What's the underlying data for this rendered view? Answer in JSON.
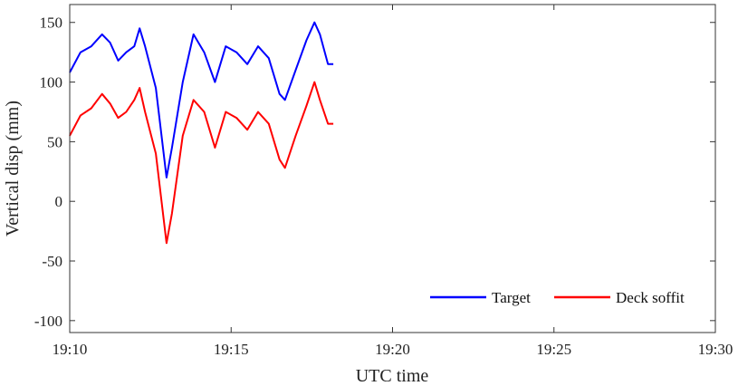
{
  "chart_data": {
    "type": "line",
    "title": "",
    "xlabel": "UTC time",
    "ylabel": "Vertical disp (mm)",
    "xlim": [
      "19:10",
      "19:30"
    ],
    "ylim": [
      -110,
      165
    ],
    "x_ticks": [
      "19:10",
      "19:15",
      "19:20",
      "19:25",
      "19:30"
    ],
    "y_ticks": [
      150,
      100,
      50,
      0,
      -50,
      -100
    ],
    "grid": false,
    "legend_position": "bottom-right",
    "series": [
      {
        "name": "Target",
        "color": "#0000ff",
        "points": [
          [
            "19:10:00",
            108
          ],
          [
            "19:10:20",
            125
          ],
          [
            "19:10:40",
            130
          ],
          [
            "19:11:00",
            140
          ],
          [
            "19:11:15",
            133
          ],
          [
            "19:11:30",
            118
          ],
          [
            "19:11:45",
            125
          ],
          [
            "19:12:00",
            130
          ],
          [
            "19:12:10",
            145
          ],
          [
            "19:12:20",
            130
          ],
          [
            "19:12:40",
            95
          ],
          [
            "19:13:00",
            20
          ],
          [
            "19:13:10",
            45
          ],
          [
            "19:13:30",
            100
          ],
          [
            "19:13:50",
            140
          ],
          [
            "19:14:10",
            125
          ],
          [
            "19:14:30",
            100
          ],
          [
            "19:14:50",
            130
          ],
          [
            "19:15:10",
            125
          ],
          [
            "19:15:30",
            115
          ],
          [
            "19:15:50",
            130
          ],
          [
            "19:16:10",
            120
          ],
          [
            "19:16:30",
            90
          ],
          [
            "19:16:40",
            85
          ],
          [
            "19:17:00",
            110
          ],
          [
            "19:17:20",
            135
          ],
          [
            "19:17:35",
            150
          ],
          [
            "19:17:45",
            140
          ],
          [
            "19:18:00",
            115
          ],
          [
            "19:18:10",
            115
          ]
        ]
      },
      {
        "name": "Deck soffit",
        "color": "#ff0000",
        "points": [
          [
            "19:10:00",
            55
          ],
          [
            "19:10:20",
            72
          ],
          [
            "19:10:40",
            78
          ],
          [
            "19:11:00",
            90
          ],
          [
            "19:11:15",
            82
          ],
          [
            "19:11:30",
            70
          ],
          [
            "19:11:45",
            75
          ],
          [
            "19:12:00",
            85
          ],
          [
            "19:12:10",
            95
          ],
          [
            "19:12:20",
            75
          ],
          [
            "19:12:40",
            40
          ],
          [
            "19:13:00",
            -35
          ],
          [
            "19:13:10",
            -10
          ],
          [
            "19:13:30",
            55
          ],
          [
            "19:13:50",
            85
          ],
          [
            "19:14:10",
            75
          ],
          [
            "19:14:30",
            45
          ],
          [
            "19:14:50",
            75
          ],
          [
            "19:15:10",
            70
          ],
          [
            "19:15:30",
            60
          ],
          [
            "19:15:50",
            75
          ],
          [
            "19:16:10",
            65
          ],
          [
            "19:16:30",
            35
          ],
          [
            "19:16:40",
            28
          ],
          [
            "19:17:00",
            55
          ],
          [
            "19:17:20",
            80
          ],
          [
            "19:17:35",
            100
          ],
          [
            "19:17:45",
            85
          ],
          [
            "19:18:00",
            65
          ],
          [
            "19:18:10",
            65
          ]
        ]
      }
    ]
  }
}
